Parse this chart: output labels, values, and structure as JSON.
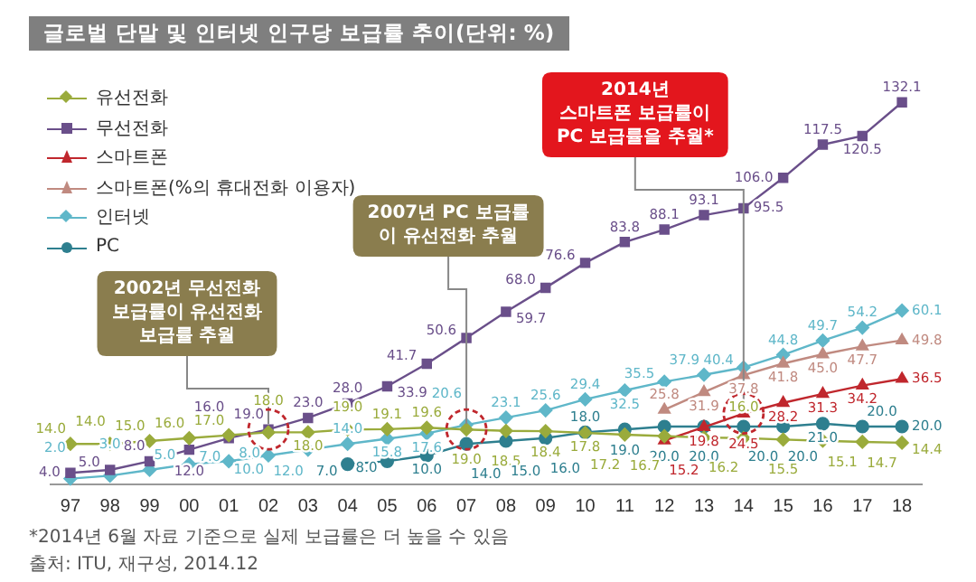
{
  "chart_data": {
    "type": "line",
    "title": "글로벌 단말 및 인터넷 인구당 보급률 추이(단위: %)",
    "categories": [
      "97",
      "98",
      "99",
      "00",
      "01",
      "02",
      "03",
      "04",
      "05",
      "06",
      "07",
      "08",
      "09",
      "10",
      "11",
      "12",
      "13",
      "14",
      "15",
      "16",
      "17",
      "18"
    ],
    "series": [
      {
        "name": "유선전화",
        "color": "#9aab3c",
        "marker": "diamond",
        "values": [
          14.0,
          14.0,
          15.0,
          16.0,
          17.0,
          18.0,
          18.0,
          19.0,
          19.1,
          19.6,
          19.0,
          18.5,
          18.4,
          17.8,
          17.2,
          16.7,
          16.2,
          16.0,
          15.5,
          15.1,
          14.7,
          14.4
        ],
        "value_labels": [
          "14.0",
          "14.0",
          "15.0",
          "16.0",
          "17.0",
          "18.0",
          "18.0",
          "19.0",
          "19.1",
          "19.6",
          "19.0",
          "18.5",
          "18.4",
          "17.8",
          "17.2",
          "16.7",
          "16.2",
          "16.0",
          "15.5",
          "15.1",
          "14.7",
          "14.4"
        ]
      },
      {
        "name": "무선전화",
        "color": "#6a4f8a",
        "marker": "square",
        "values": [
          4.0,
          5.0,
          8.0,
          12.0,
          16.0,
          19.0,
          23.0,
          28.0,
          33.9,
          41.7,
          50.6,
          59.7,
          68.0,
          76.6,
          83.8,
          88.1,
          93.1,
          95.5,
          106.0,
          117.5,
          120.5,
          132.1
        ],
        "value_labels": [
          "4.0",
          "5.0",
          "8.0",
          "12.0",
          "16.0",
          "19.0",
          "23.0",
          "28.0",
          "33.9",
          "41.7",
          "50.6",
          "59.7",
          "68.0",
          "76.6",
          "83.8",
          "88.1",
          "93.1",
          "95.5",
          "106.0",
          "117.5",
          "120.5",
          "132.1"
        ]
      },
      {
        "name": "스마트폰",
        "color": "#c0272d",
        "marker": "triangle",
        "values": [
          null,
          null,
          null,
          null,
          null,
          null,
          null,
          null,
          null,
          null,
          null,
          null,
          null,
          null,
          null,
          15.2,
          19.8,
          24.5,
          28.2,
          31.3,
          34.2,
          36.5
        ],
        "value_labels": [
          null,
          null,
          null,
          null,
          null,
          null,
          null,
          null,
          null,
          null,
          null,
          null,
          null,
          null,
          null,
          "15.2",
          "19.8",
          "24.5",
          "28.2",
          "31.3",
          "34.2",
          "36.5"
        ]
      },
      {
        "name": "스마트폰(%의 휴대전화 이용자)",
        "color": "#c08a80",
        "marker": "triangle",
        "values": [
          null,
          null,
          null,
          null,
          null,
          null,
          null,
          null,
          null,
          null,
          null,
          null,
          null,
          null,
          null,
          25.8,
          31.9,
          37.8,
          41.8,
          45.0,
          47.7,
          49.8
        ],
        "value_labels": [
          null,
          null,
          null,
          null,
          null,
          null,
          null,
          null,
          null,
          null,
          null,
          null,
          null,
          null,
          null,
          "25.8",
          "31.9",
          "37.8",
          "41.8",
          "45.0",
          "47.7",
          "49.8"
        ]
      },
      {
        "name": "인터넷",
        "color": "#5fb7c9",
        "marker": "diamond",
        "values": [
          2.0,
          3.0,
          5.0,
          7.0,
          8.0,
          10.0,
          12.0,
          14.0,
          15.8,
          17.6,
          20.6,
          23.1,
          25.6,
          29.4,
          32.5,
          35.5,
          37.9,
          40.4,
          44.8,
          49.7,
          54.2,
          60.1
        ],
        "value_labels": [
          "2.0",
          "3.0",
          "5.0",
          "7.0",
          "8.0",
          "10.0",
          "12.0",
          "14.0",
          "15.8",
          "17.6",
          "20.6",
          "23.1",
          "25.6",
          "29.4",
          "32.5",
          "35.5",
          "37.9",
          "40.4",
          "44.8",
          "49.7",
          "54.2",
          "60.1"
        ]
      },
      {
        "name": "PC",
        "color": "#2e7f8f",
        "marker": "circle",
        "values": [
          null,
          null,
          null,
          null,
          null,
          null,
          null,
          7.0,
          8.0,
          10.0,
          14.0,
          15.0,
          16.0,
          18.0,
          19.0,
          20.0,
          20.0,
          20.0,
          20.0,
          21.0,
          20.0,
          20.0
        ],
        "value_labels": [
          null,
          null,
          null,
          null,
          null,
          null,
          null,
          "7.0",
          "8.0",
          "10.0",
          "14.0",
          "15.0",
          "16.0",
          "18.0",
          "19.0",
          "20.0",
          "20.0",
          "20.0",
          "20.0",
          "21.0",
          "20.0",
          "20.0"
        ]
      }
    ],
    "grid": false,
    "legend": "top left",
    "annotations": [
      {
        "text": "2002년 무선전화\n보급률이 유선전화\n보급률 추월",
        "x": "02",
        "y": 19.0
      },
      {
        "text": "2007년 PC 보급률\n이 유선전화 추월",
        "x": "07",
        "y": 19.0
      },
      {
        "text": "2014년\n스마트폰 보급률이\nPC 보급률을 추월*",
        "x": "14",
        "y": 24.5
      },
      "*2014년 6월 자료 기준으로 실제 보급률은 더 높을 수 있음",
      "출처: ITU, 재구성, 2014.12"
    ]
  }
}
